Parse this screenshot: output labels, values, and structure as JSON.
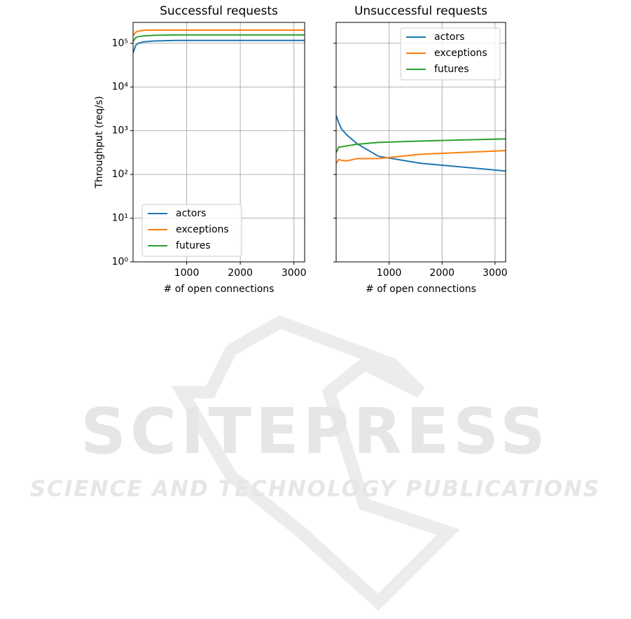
{
  "chart_data": [
    {
      "type": "line",
      "title": "Successful requests",
      "xlabel": "# of open connections",
      "ylabel": "Throughput (req/s)",
      "x": [
        1,
        50,
        100,
        200,
        400,
        800,
        1600,
        3200
      ],
      "series": [
        {
          "name": "actors",
          "color": "#1f77b4",
          "values": [
            60000,
            90000,
            100000,
            108000,
            113000,
            116000,
            116000,
            116000
          ]
        },
        {
          "name": "exceptions",
          "color": "#ff7f0e",
          "values": [
            150000,
            180000,
            190000,
            198000,
            200000,
            200000,
            200000,
            200000
          ]
        },
        {
          "name": "futures",
          "color": "#2ca02c",
          "values": [
            110000,
            135000,
            142000,
            148000,
            152000,
            155000,
            155000,
            155000
          ]
        }
      ],
      "xlim": [
        0,
        3200
      ],
      "ylim": [
        1,
        300000
      ],
      "log_y": true,
      "grid": true,
      "legend": "lower left",
      "show_ytick_labels": true,
      "xticks": [
        1000,
        2000,
        3000
      ],
      "yticks": [
        {
          "value": 1,
          "label": "10⁰"
        },
        {
          "value": 10,
          "label": "10¹"
        },
        {
          "value": 100,
          "label": "10²"
        },
        {
          "value": 1000,
          "label": "10³"
        },
        {
          "value": 10000,
          "label": "10⁴"
        },
        {
          "value": 100000,
          "label": "10⁵"
        }
      ]
    },
    {
      "type": "line",
      "title": "Unsuccessful requests",
      "xlabel": "# of open connections",
      "x": [
        1,
        50,
        100,
        200,
        400,
        800,
        1600,
        3200
      ],
      "series": [
        {
          "name": "actors",
          "color": "#1f77b4",
          "values": [
            2200,
            1500,
            1100,
            800,
            500,
            260,
            180,
            120
          ]
        },
        {
          "name": "exceptions",
          "color": "#ff7f0e",
          "values": [
            180,
            220,
            210,
            205,
            230,
            230,
            290,
            350
          ]
        },
        {
          "name": "futures",
          "color": "#2ca02c",
          "values": [
            320,
            420,
            430,
            450,
            490,
            540,
            580,
            650
          ]
        }
      ],
      "xlim": [
        0,
        3200
      ],
      "ylim": [
        1,
        300000
      ],
      "log_y": true,
      "grid": true,
      "legend": "upper right",
      "show_ytick_labels": false,
      "xticks": [
        1000,
        2000,
        3000
      ],
      "yticks": [
        1,
        10,
        100,
        1000,
        10000,
        100000
      ]
    }
  ],
  "watermark": {
    "title": "SCITEPRESS",
    "subtitle": "SCIENCE AND TECHNOLOGY PUBLICATIONS"
  }
}
